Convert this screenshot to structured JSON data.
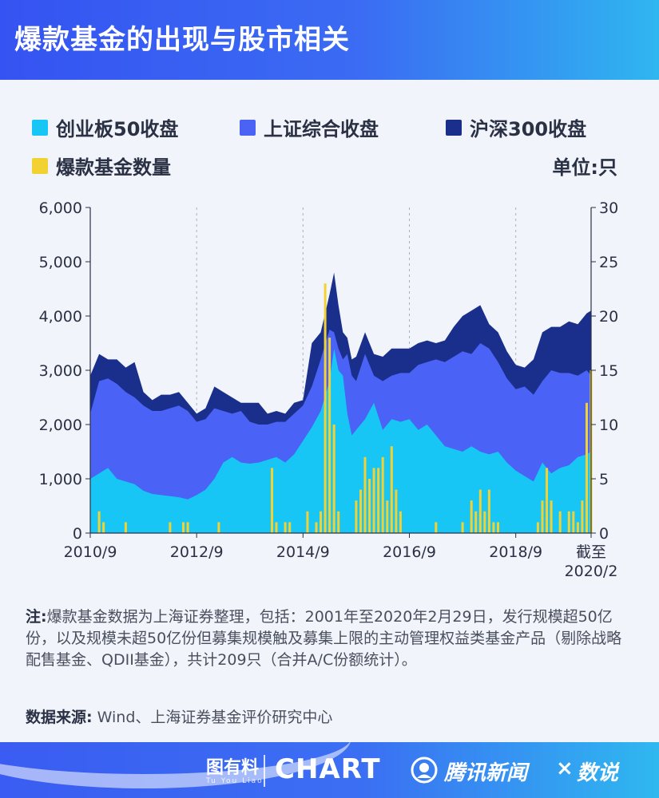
{
  "header": {
    "title": "爆款基金的出现与股市相关"
  },
  "legend": {
    "items": [
      {
        "label": "创业板50收盘",
        "color": "#18c6f5"
      },
      {
        "label": "上证综合收盘",
        "color": "#4a62f5"
      },
      {
        "label": "沪深300收盘",
        "color": "#1a2f8c"
      },
      {
        "label": "爆款基金数量",
        "color": "#f2d233"
      }
    ],
    "unit": "单位:只"
  },
  "note": {
    "prefix": "注:",
    "text": "爆款基金数据为上海证券整理，包括：2001年至2020年2月29日，发行规模超50亿份，以及规模未超50亿份但募集规模触及募集上限的主动管理权益类基金产品（剔除战略配售基金、QDII基金），共计209只（合并A/C份额统计）。"
  },
  "source": {
    "prefix": "数据来源:",
    "text": " Wind、上海证券基金评价研究中心"
  },
  "footer": {
    "brand1": "图有料",
    "brand1_sub": "Tu You Liao",
    "brand2": "CHART",
    "brand3": "腾讯新闻",
    "times": "×",
    "brand4": "数说"
  },
  "chart_data": {
    "type": "area",
    "x_axis": {
      "tick_labels": [
        "2010/9",
        "2012/9",
        "2014/9",
        "2016/9",
        "2018/9",
        "截至\n2020/2"
      ],
      "tick_dates": [
        "2010-09",
        "2012-09",
        "2014-09",
        "2016-09",
        "2018-09",
        "2020-02"
      ],
      "range": [
        "2010-09",
        "2020-02"
      ]
    },
    "y_axis_left": {
      "ticks": [
        0,
        1000,
        2000,
        3000,
        4000,
        5000,
        6000
      ],
      "tick_labels": [
        "0",
        "1,000",
        "2,000",
        "3,000",
        "4,000",
        "5,000",
        "6,000"
      ],
      "range": [
        0,
        6000
      ]
    },
    "y_axis_right": {
      "ticks": [
        0,
        5,
        10,
        15,
        20,
        25,
        30
      ],
      "range": [
        0,
        30
      ]
    },
    "grid": "vertical-dashed",
    "dates": [
      "2010-09",
      "2010-11",
      "2011-01",
      "2011-03",
      "2011-05",
      "2011-07",
      "2011-09",
      "2011-11",
      "2012-01",
      "2012-03",
      "2012-05",
      "2012-07",
      "2012-09",
      "2012-11",
      "2013-01",
      "2013-03",
      "2013-05",
      "2013-07",
      "2013-09",
      "2013-11",
      "2014-01",
      "2014-03",
      "2014-05",
      "2014-07",
      "2014-09",
      "2014-11",
      "2015-01",
      "2015-03",
      "2015-04",
      "2015-05",
      "2015-06",
      "2015-07",
      "2015-08",
      "2015-09",
      "2015-11",
      "2016-01",
      "2016-03",
      "2016-05",
      "2016-07",
      "2016-09",
      "2016-11",
      "2017-01",
      "2017-03",
      "2017-05",
      "2017-07",
      "2017-09",
      "2017-11",
      "2018-01",
      "2018-03",
      "2018-05",
      "2018-07",
      "2018-09",
      "2018-11",
      "2019-01",
      "2019-03",
      "2019-05",
      "2019-07",
      "2019-09",
      "2019-11",
      "2020-01",
      "2020-02"
    ],
    "series": [
      {
        "name": "创业板50收盘",
        "color": "#18c6f5",
        "values": [
          1000,
          1100,
          1200,
          1000,
          950,
          900,
          780,
          720,
          700,
          680,
          660,
          620,
          700,
          800,
          1000,
          1300,
          1400,
          1300,
          1280,
          1300,
          1350,
          1400,
          1300,
          1450,
          1700,
          1950,
          2250,
          2800,
          3400,
          3000,
          2900,
          2200,
          1800,
          1900,
          2100,
          2400,
          1900,
          2100,
          2050,
          2100,
          1900,
          2000,
          1800,
          1600,
          1550,
          1500,
          1600,
          1500,
          1450,
          1500,
          1300,
          1150,
          1050,
          950,
          1300,
          1100,
          1200,
          1250,
          1400,
          1450,
          1500
        ]
      },
      {
        "name": "上证综合收盘",
        "color": "#4a62f5",
        "values": [
          2200,
          2800,
          2850,
          2750,
          2600,
          2500,
          2350,
          2250,
          2250,
          2300,
          2350,
          2250,
          2050,
          2100,
          2300,
          2250,
          2200,
          2250,
          2050,
          2000,
          2000,
          2050,
          2050,
          2200,
          2350,
          2700,
          3200,
          3750,
          3700,
          3400,
          3200,
          3300,
          2900,
          2800,
          3300,
          2900,
          2800,
          2900,
          2950,
          2950,
          3100,
          3150,
          3200,
          3150,
          3250,
          3350,
          3300,
          3500,
          3400,
          3150,
          2850,
          2650,
          2700,
          2550,
          2800,
          3000,
          2950,
          2950,
          2900,
          3000,
          2900
        ]
      },
      {
        "name": "沪深300收盘",
        "color": "#1a2f8c",
        "values": [
          2900,
          3300,
          3200,
          3200,
          3050,
          3150,
          2600,
          2450,
          2550,
          2550,
          2600,
          2400,
          2200,
          2300,
          2700,
          2600,
          2500,
          2400,
          2400,
          2400,
          2200,
          2250,
          2200,
          2400,
          2450,
          3500,
          3700,
          4400,
          4800,
          4200,
          3700,
          3600,
          3200,
          3250,
          3700,
          3300,
          3250,
          3400,
          3400,
          3400,
          3500,
          3550,
          3500,
          3550,
          3800,
          4000,
          4100,
          4200,
          3850,
          3700,
          3350,
          3100,
          3050,
          3200,
          3700,
          3800,
          3800,
          3900,
          3850,
          4050,
          4100
        ]
      }
    ],
    "bar_series": {
      "name": "爆款基金数量",
      "color": "#f2d233",
      "points": [
        {
          "date": "2010-11",
          "value": 2
        },
        {
          "date": "2010-12",
          "value": 1
        },
        {
          "date": "2011-05",
          "value": 1
        },
        {
          "date": "2012-03",
          "value": 1
        },
        {
          "date": "2012-06",
          "value": 1
        },
        {
          "date": "2012-07",
          "value": 1
        },
        {
          "date": "2013-02",
          "value": 1
        },
        {
          "date": "2014-02",
          "value": 6
        },
        {
          "date": "2014-03",
          "value": 1
        },
        {
          "date": "2014-05",
          "value": 1
        },
        {
          "date": "2014-06",
          "value": 1
        },
        {
          "date": "2014-10",
          "value": 2
        },
        {
          "date": "2014-12",
          "value": 1
        },
        {
          "date": "2015-01",
          "value": 2
        },
        {
          "date": "2015-02",
          "value": 23
        },
        {
          "date": "2015-03",
          "value": 18
        },
        {
          "date": "2015-04",
          "value": 10
        },
        {
          "date": "2015-05",
          "value": 2
        },
        {
          "date": "2015-09",
          "value": 3
        },
        {
          "date": "2015-10",
          "value": 4
        },
        {
          "date": "2015-11",
          "value": 7
        },
        {
          "date": "2015-12",
          "value": 5
        },
        {
          "date": "2016-01",
          "value": 6
        },
        {
          "date": "2016-02",
          "value": 6
        },
        {
          "date": "2016-03",
          "value": 7
        },
        {
          "date": "2016-04",
          "value": 3
        },
        {
          "date": "2016-05",
          "value": 8
        },
        {
          "date": "2016-06",
          "value": 4
        },
        {
          "date": "2016-07",
          "value": 2
        },
        {
          "date": "2017-03",
          "value": 1
        },
        {
          "date": "2017-09",
          "value": 1
        },
        {
          "date": "2017-11",
          "value": 3
        },
        {
          "date": "2017-12",
          "value": 2
        },
        {
          "date": "2018-01",
          "value": 4
        },
        {
          "date": "2018-02",
          "value": 2
        },
        {
          "date": "2018-03",
          "value": 4
        },
        {
          "date": "2018-04",
          "value": 1
        },
        {
          "date": "2018-05",
          "value": 1
        },
        {
          "date": "2019-02",
          "value": 1
        },
        {
          "date": "2019-03",
          "value": 3
        },
        {
          "date": "2019-04",
          "value": 6
        },
        {
          "date": "2019-05",
          "value": 3
        },
        {
          "date": "2019-07",
          "value": 2
        },
        {
          "date": "2019-09",
          "value": 2
        },
        {
          "date": "2019-10",
          "value": 2
        },
        {
          "date": "2019-11",
          "value": 1
        },
        {
          "date": "2019-12",
          "value": 3
        },
        {
          "date": "2020-01",
          "value": 12
        },
        {
          "date": "2020-02",
          "value": 15
        }
      ]
    }
  }
}
